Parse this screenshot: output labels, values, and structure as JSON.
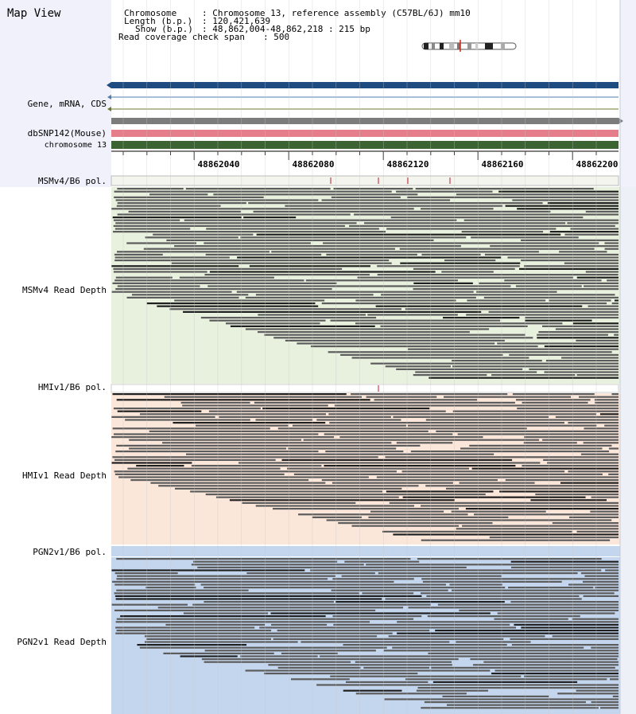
{
  "title": "Map View",
  "header": {
    "chromosome_label": "Chromosome",
    "chromosome_value": ": Chromosome 13, reference assembly (C57BL/6J) mm10",
    "length_label": "Length (b.p.)",
    "length_value": ": 120,421,639",
    "show_label": "Show (b.p.)",
    "show_value": ": 48,862,004-48,862,218 : 215 bp",
    "coverage_label": "Read coverage check span",
    "coverage_value": ": 500"
  },
  "track_labels": {
    "gene": "Gene, mRNA, CDS",
    "dbsnp": "dbSNP142(Mouse)",
    "chrom": "chromosome 13",
    "msm_pol": "MSMv4/B6 pol.",
    "msm_depth": "MSMv4 Read Depth",
    "hmi_pol": "HMIv1/B6 pol.",
    "hmi_depth": "HMIv1 Read Depth",
    "pgn_pol": "PGN2v1/B6 pol.",
    "pgn_depth": "PGN2v1 Read Depth"
  },
  "ruler": {
    "ticks": [
      "48862040",
      "48862080",
      "48862120",
      "48862160",
      "48862200"
    ]
  },
  "colors": {
    "gene_bar": "#1e4b80",
    "dbsnp_bar": "#e57d8a",
    "chrom_bar": "#3c6332",
    "msm_bg": "#e8f0de",
    "hmi_bg": "#fbe6da",
    "pgn_bg": "#c4d6ee",
    "read": "#5c5c5c",
    "read_dark": "#1f1f1f",
    "snp_mark": "#c0192a"
  }
}
